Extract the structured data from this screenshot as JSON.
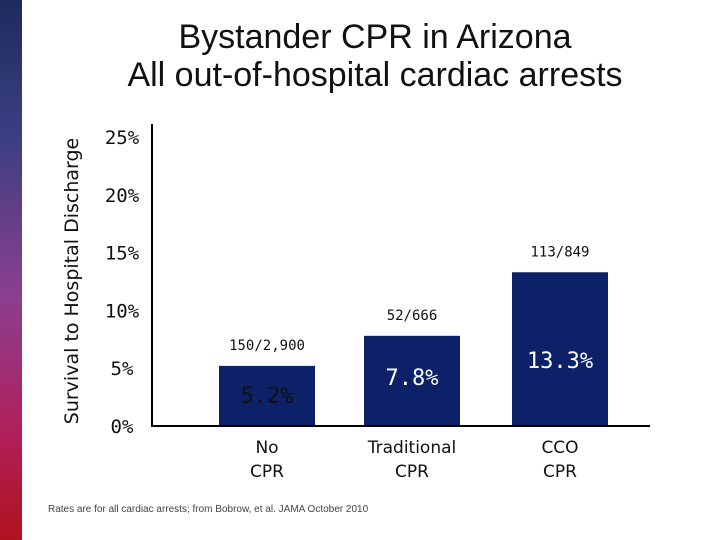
{
  "title_line1": "Bystander CPR in Arizona",
  "title_line2": "All out-of-hospital cardiac arrests",
  "footnote": "Rates are for all cardiac arrests; from Bobrow, et al. JAMA October 2010",
  "chart_data": {
    "type": "bar",
    "title": "Bystander CPR in Arizona — All out-of-hospital cardiac arrests",
    "ylabel": "Survival to Hospital Discharge",
    "xlabel": "",
    "ylim": [
      0,
      25
    ],
    "yticks": [
      0,
      5,
      10,
      15,
      20,
      25
    ],
    "ytick_labels": [
      "0%",
      "5%",
      "10%",
      "15%",
      "20%",
      "25%"
    ],
    "categories": [
      [
        "No",
        "CPR"
      ],
      [
        "Traditional",
        "CPR"
      ],
      [
        "CCO",
        "CPR"
      ]
    ],
    "values": [
      5.2,
      7.8,
      13.3
    ],
    "value_labels": [
      "5.2%",
      "7.8%",
      "13.3%"
    ],
    "counts": [
      "150/2,900",
      "52/666",
      "113/849"
    ],
    "bar_color": "#0d2168",
    "value_label_colors": [
      "#111111",
      "#ffffff",
      "#ffffff"
    ],
    "grid": false
  }
}
